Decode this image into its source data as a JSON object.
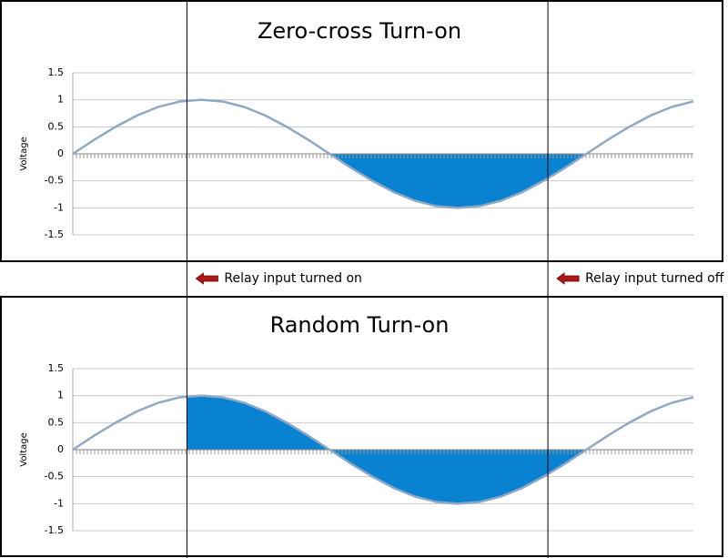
{
  "chart_data": [
    {
      "type": "line",
      "title": "Zero-cross Turn-on",
      "y_label": "Voltage",
      "x": [
        0,
        15,
        30,
        45,
        60,
        75,
        90,
        105,
        120,
        135,
        150,
        165,
        180,
        195,
        210,
        225,
        240,
        255,
        270,
        285,
        300,
        315,
        330,
        345,
        360,
        375,
        390,
        405,
        420,
        435
      ],
      "values": [
        0,
        0.26,
        0.5,
        0.71,
        0.87,
        0.97,
        1,
        0.97,
        0.87,
        0.71,
        0.5,
        0.26,
        0,
        -0.26,
        -0.5,
        -0.71,
        -0.87,
        -0.97,
        -1,
        -0.97,
        -0.87,
        -0.71,
        -0.5,
        -0.26,
        0,
        0.26,
        0.5,
        0.71,
        0.87,
        0.97
      ],
      "color": "#8fa8c4",
      "shade": [
        180,
        360
      ],
      "shade_color": "#0a82d2",
      "xlim": [
        0,
        435
      ],
      "ylim": [
        -1.5,
        1.5
      ],
      "yticks": [
        1.5,
        1,
        0.5,
        0,
        -0.5,
        -1,
        -1.5
      ],
      "grid": true
    },
    {
      "type": "line",
      "title": "Random Turn-on",
      "y_label": "Voltage",
      "x": [
        0,
        15,
        30,
        45,
        60,
        75,
        90,
        105,
        120,
        135,
        150,
        165,
        180,
        195,
        210,
        225,
        240,
        255,
        270,
        285,
        300,
        315,
        330,
        345,
        360,
        375,
        390,
        405,
        420,
        435
      ],
      "values": [
        0,
        0.26,
        0.5,
        0.71,
        0.87,
        0.97,
        1,
        0.97,
        0.87,
        0.71,
        0.5,
        0.26,
        0,
        -0.26,
        -0.5,
        -0.71,
        -0.87,
        -0.97,
        -1,
        -0.97,
        -0.87,
        -0.71,
        -0.5,
        -0.26,
        0,
        0.26,
        0.5,
        0.71,
        0.87,
        0.97
      ],
      "color": "#8fa8c4",
      "shade": [
        80,
        360
      ],
      "shade_color": "#0a82d2",
      "xlim": [
        0,
        435
      ],
      "ylim": [
        -1.5,
        1.5
      ],
      "yticks": [
        1.5,
        1,
        0.5,
        0,
        -0.5,
        -1,
        -1.5
      ],
      "grid": true
    }
  ],
  "annotations": [
    {
      "x": 80,
      "label": "Relay input turned on"
    },
    {
      "x": 333,
      "label": "Relay input turned off"
    }
  ]
}
